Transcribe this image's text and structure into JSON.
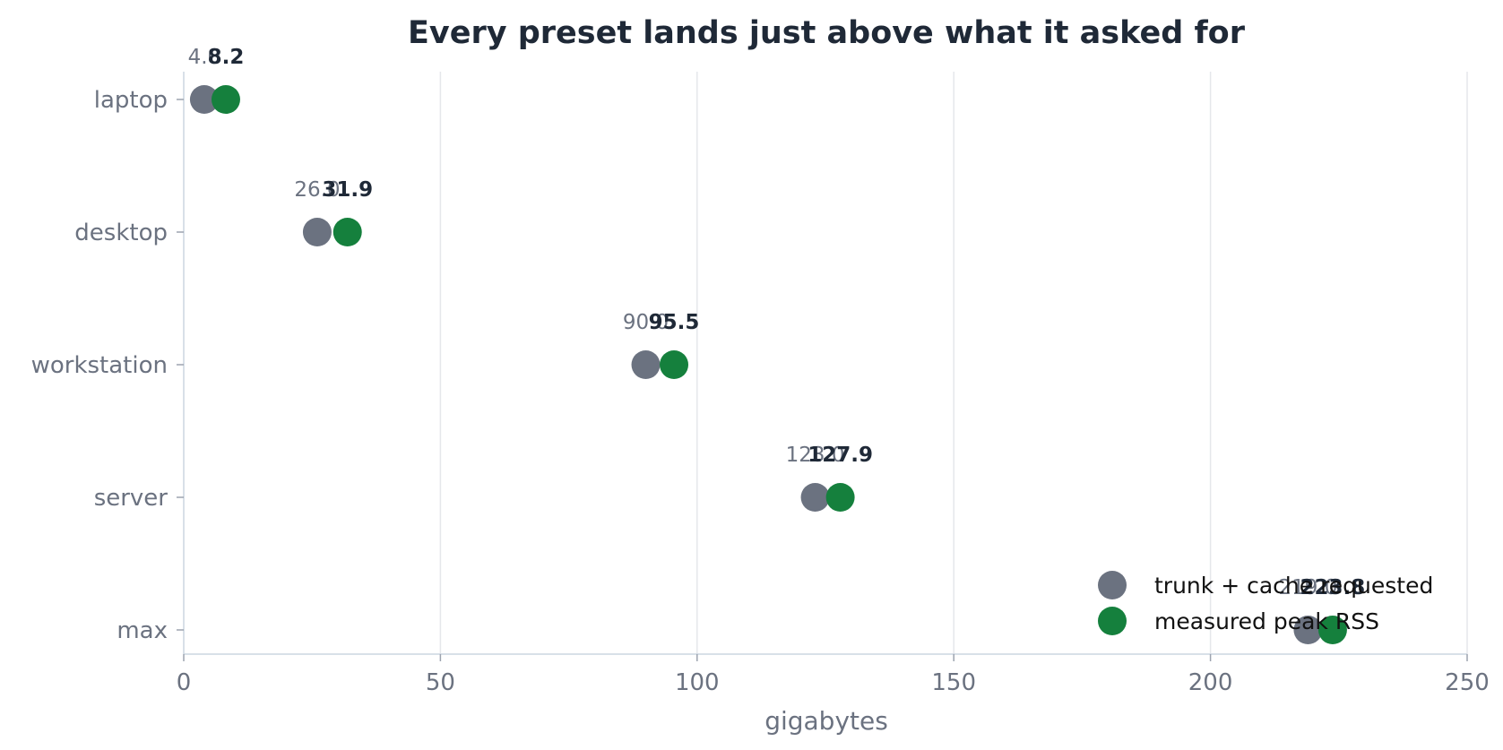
{
  "chart_data": {
    "type": "scatter",
    "title": "Every preset lands just above what it asked for",
    "xlabel": "gigabytes",
    "ylabel": "",
    "xlim": [
      0,
      250
    ],
    "xticks": [
      0,
      50,
      100,
      150,
      200,
      250
    ],
    "grid": "vertical",
    "legend_position": "bottom-right",
    "categories": [
      "laptop",
      "desktop",
      "workstation",
      "server",
      "max"
    ],
    "series": [
      {
        "name": "trunk + cache requested",
        "color": "#6b7280",
        "values": [
          4.0,
          26.0,
          90.0,
          123.0,
          219.0
        ]
      },
      {
        "name": "measured peak RSS",
        "color": "#15803d",
        "values": [
          8.2,
          31.9,
          95.5,
          127.9,
          223.8
        ]
      }
    ]
  }
}
